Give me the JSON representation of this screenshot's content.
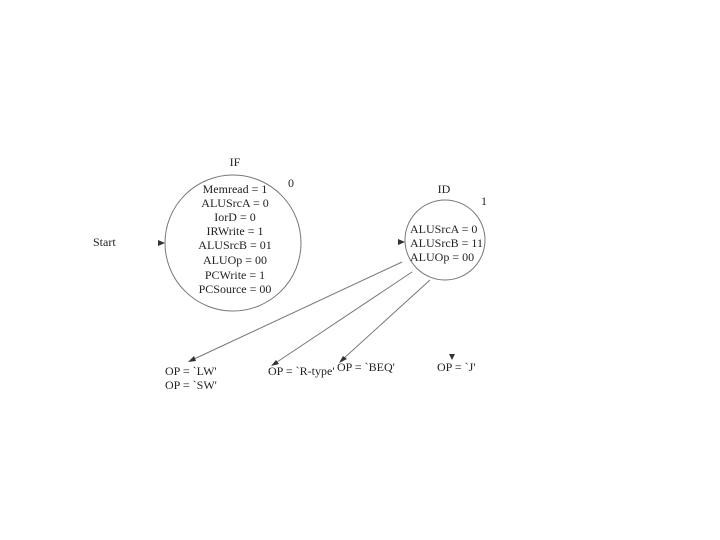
{
  "start": "Start",
  "states": [
    {
      "name": "IF",
      "number": "0",
      "actions": [
        "Memread = 1",
        "ALUSrcA = 0",
        "IorD = 0",
        "IRWrite = 1",
        "ALUSrcB = 01",
        "ALUOp = 00",
        "PCWrite = 1",
        "PCSource = 00"
      ]
    },
    {
      "name": "ID",
      "number": "1",
      "actions": [
        "ALUSrcA = 0",
        "ALUSrcB = 11",
        "ALUOp = 00"
      ]
    }
  ],
  "transitions": [
    {
      "conditions": [
        "OP = `LW'",
        "OP = `SW'"
      ]
    },
    {
      "conditions": [
        "OP = `R-type'"
      ]
    },
    {
      "conditions": [
        "OP = `BEQ'"
      ]
    },
    {
      "conditions": [
        "OP = `J'"
      ]
    }
  ]
}
